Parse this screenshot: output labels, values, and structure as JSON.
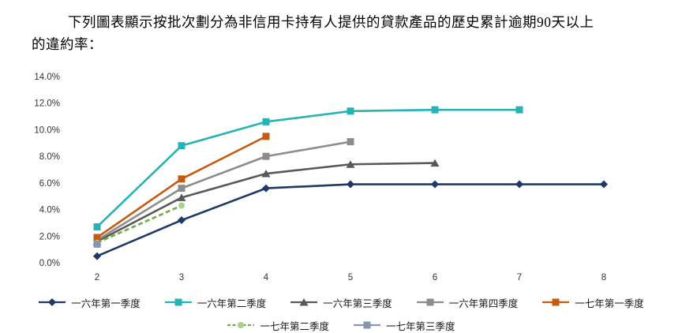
{
  "intro": {
    "line1": "下列圖表顯示按批次劃分為非信用卡持有人提供的貸款產品的歷史累計逾期90天以上",
    "line2": "的違約率："
  },
  "chart_data": {
    "type": "line",
    "title": "",
    "xlabel": "",
    "ylabel": "",
    "x_start": 2,
    "x_ticks": [
      2,
      3,
      4,
      5,
      6,
      7,
      8
    ],
    "y_ticks": [
      "0.0%",
      "2.0%",
      "4.0%",
      "6.0%",
      "8.0%",
      "10.0%",
      "12.0%",
      "14.0%"
    ],
    "ylim": [
      0,
      14
    ],
    "y_unit": "%",
    "grid": false,
    "legend_position": "bottom",
    "series": [
      {
        "name": "一六年第一季度",
        "color": "#1F3864",
        "marker": "diamond",
        "dash": false,
        "values": [
          0.5,
          3.2,
          5.6,
          5.9,
          5.9,
          5.9,
          5.9
        ]
      },
      {
        "name": "一六年第二季度",
        "color": "#26B3B3",
        "marker": "square",
        "dash": false,
        "values": [
          2.7,
          8.8,
          10.6,
          11.4,
          11.5,
          11.5
        ]
      },
      {
        "name": "一六年第三季度",
        "color": "#595959",
        "marker": "triangle",
        "dash": false,
        "values": [
          1.6,
          4.9,
          6.7,
          7.4,
          7.5
        ]
      },
      {
        "name": "一六年第四季度",
        "color": "#8C8C8C",
        "marker": "square",
        "dash": false,
        "values": [
          1.7,
          5.6,
          8.0,
          9.1
        ]
      },
      {
        "name": "一七年第一季度",
        "color": "#C55A11",
        "marker": "square",
        "dash": false,
        "values": [
          1.9,
          6.3,
          9.5
        ]
      },
      {
        "name": "一七年第二季度",
        "color": "#70AD47",
        "marker": "circle",
        "marker_color": "#A9D18E",
        "dash": true,
        "values": [
          1.5,
          4.3
        ]
      },
      {
        "name": "一七年第三季度",
        "color": "#8496B0",
        "marker": "square",
        "dash": false,
        "values": [
          1.4
        ]
      }
    ]
  }
}
